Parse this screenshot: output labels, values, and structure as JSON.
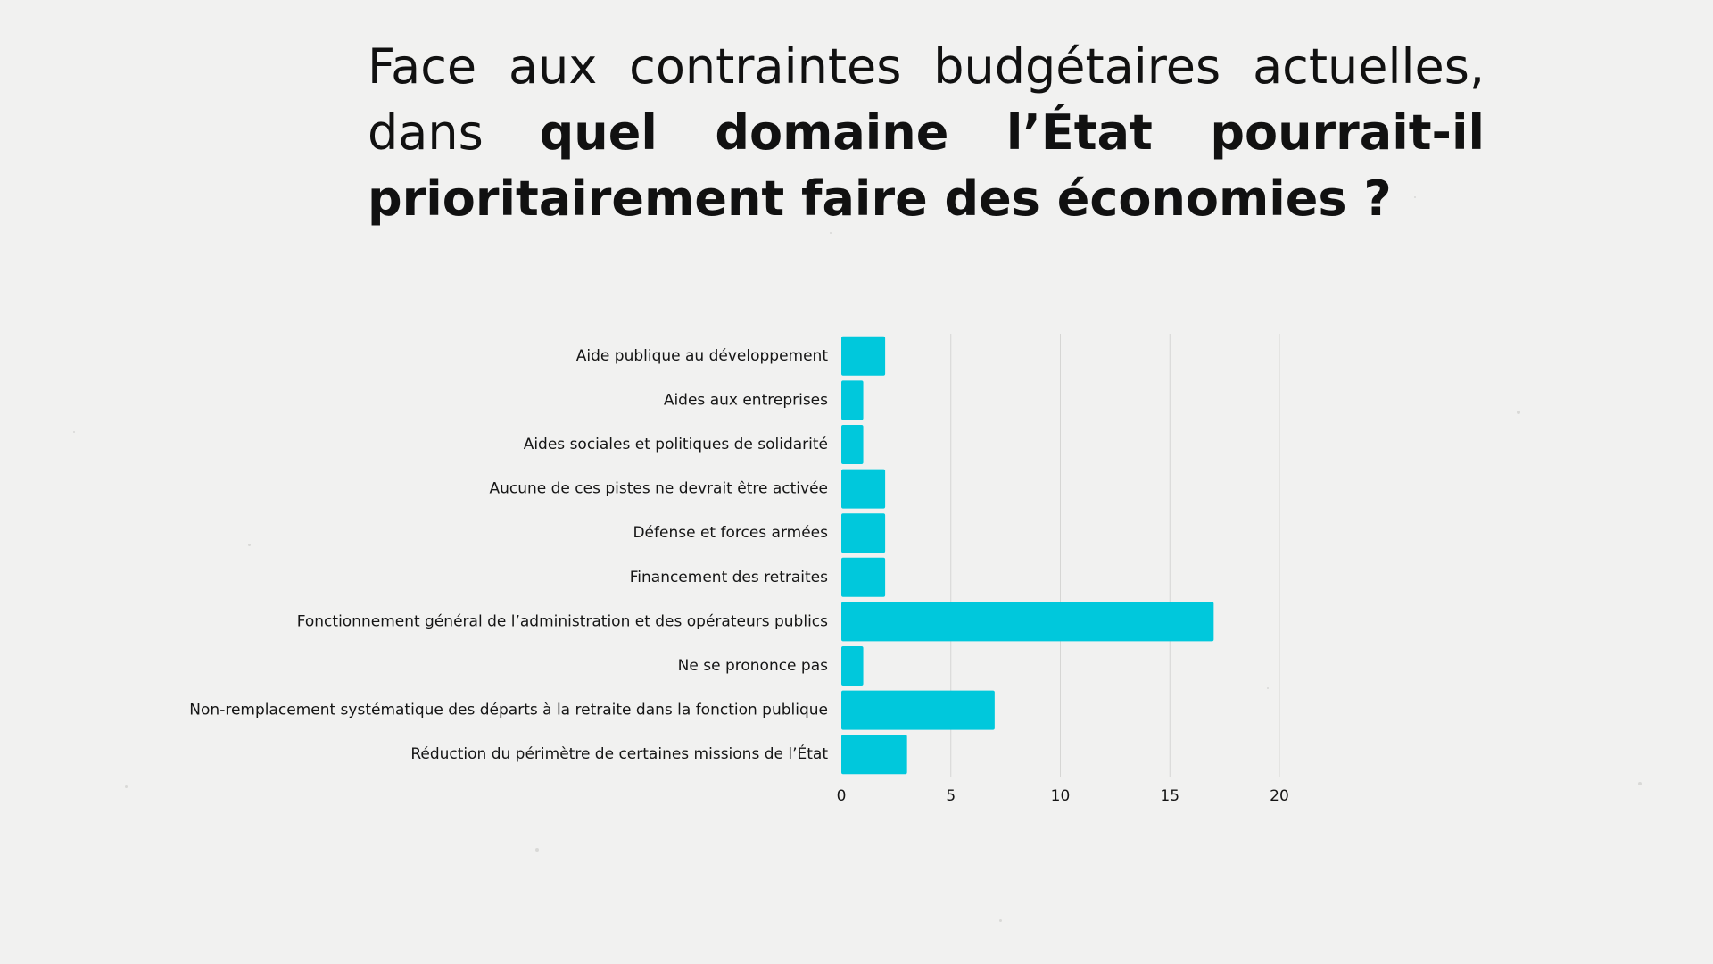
{
  "title": {
    "line_normal": "Face aux contraintes budgétaires actuelles, dans",
    "line_bold": "quel domaine l’État pourrait-il prioritairement faire des économies ?"
  },
  "chart_data": {
    "type": "bar",
    "orientation": "horizontal",
    "title": "Face aux contraintes budgétaires actuelles, dans quel domaine l’État pourrait-il prioritairement faire des économies ?",
    "categories": [
      "Aide publique au développement",
      "Aides aux entreprises",
      "Aides sociales et politiques de solidarité",
      "Aucune de ces pistes ne devrait être activée",
      "Défense et forces armées",
      "Financement des retraites",
      "Fonctionnement général de l’administration et des opérateurs publics",
      "Ne se prononce pas",
      "Non-remplacement systématique des départs à la retraite dans la fonction publique",
      "Réduction du périmètre de certaines missions de l’État"
    ],
    "values": [
      2,
      1,
      1,
      2,
      2,
      2,
      17,
      1,
      7,
      3
    ],
    "xlim": [
      0,
      20
    ],
    "xticks": [
      0,
      5,
      10,
      15,
      20
    ],
    "xlabel": "",
    "ylabel": "",
    "grid": true,
    "bar_color": "#00c8dc",
    "grid_color": "#d6d6d4"
  }
}
